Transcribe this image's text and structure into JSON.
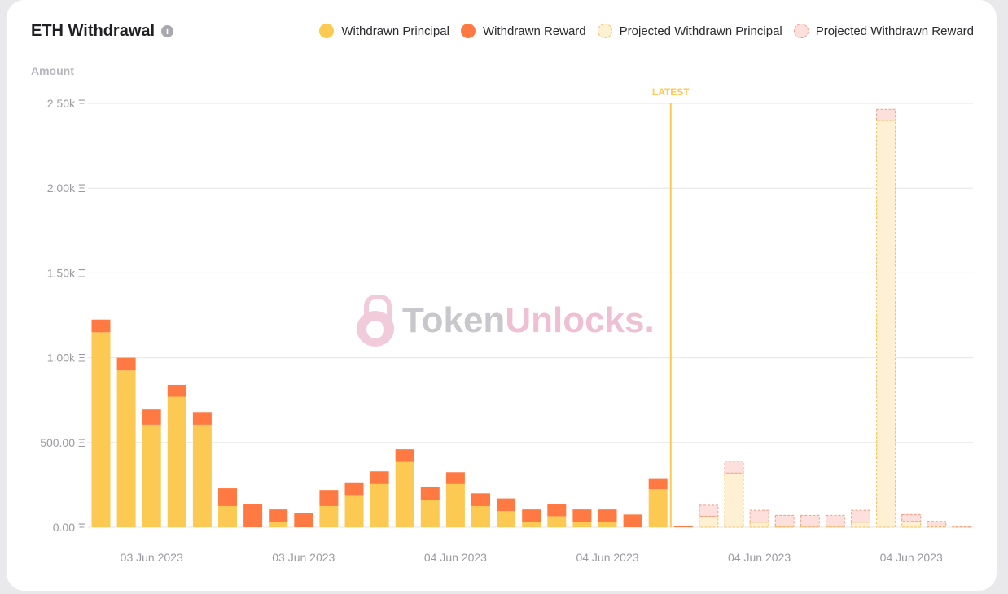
{
  "title": "ETH Withdrawal",
  "info_icon": "info-icon",
  "legend": [
    {
      "label": "Withdrawn Principal",
      "style": "principal"
    },
    {
      "label": "Withdrawn Reward",
      "style": "reward"
    },
    {
      "label": "Projected Withdrawn Principal",
      "style": "proj-principal"
    },
    {
      "label": "Projected Withdrawn Reward",
      "style": "proj-reward"
    }
  ],
  "watermark": {
    "part1": "Token",
    "part2": "Unlocks."
  },
  "colors": {
    "principal": "#fcc953",
    "reward": "#ff7a42",
    "proj_principal_fill": "#fdf0d3",
    "proj_principal_stroke": "#f5c15a",
    "proj_reward_fill": "#fde0db",
    "proj_reward_stroke": "#f29a86",
    "latest": "#fcc953",
    "grid": "#e6e6e9",
    "tick_text": "#9a9aa1"
  },
  "chart_data": {
    "type": "bar",
    "stacked": true,
    "ylabel": "Amount",
    "ylim": [
      0,
      2500
    ],
    "yticks": [
      0,
      500,
      1000,
      1500,
      2000,
      2500
    ],
    "ytick_labels": [
      "0.00 Ξ",
      "500.00 Ξ",
      "1.00k Ξ",
      "1.50k Ξ",
      "2.00k Ξ",
      "2.50k Ξ"
    ],
    "xtick_labels": [
      "03 Jun 2023",
      "03 Jun 2023",
      "04 Jun 2023",
      "04 Jun 2023",
      "04 Jun 2023",
      "04 Jun 2023"
    ],
    "xtick_bar_index": [
      2,
      8,
      14,
      20,
      26,
      32
    ],
    "latest_label": "LATEST",
    "latest_after_bar": 22,
    "grid": true,
    "legend_position": "top-right",
    "series": [
      {
        "name": "Withdrawn Principal",
        "values": [
          1150,
          925,
          605,
          770,
          605,
          125,
          0,
          30,
          0,
          125,
          190,
          255,
          385,
          160,
          255,
          125,
          95,
          30,
          65,
          30,
          30,
          0,
          225,
          0,
          null,
          null,
          null,
          null,
          null,
          null,
          null,
          null,
          null,
          null,
          null
        ]
      },
      {
        "name": "Withdrawn Reward",
        "values": [
          75,
          75,
          90,
          70,
          75,
          105,
          135,
          75,
          85,
          95,
          75,
          75,
          75,
          80,
          70,
          75,
          75,
          75,
          70,
          75,
          75,
          75,
          60,
          5,
          null,
          null,
          null,
          null,
          null,
          null,
          null,
          null,
          null,
          null,
          null
        ]
      },
      {
        "name": "Projected Withdrawn Principal",
        "values": [
          null,
          null,
          null,
          null,
          null,
          null,
          null,
          null,
          null,
          null,
          null,
          null,
          null,
          null,
          null,
          null,
          null,
          null,
          null,
          null,
          null,
          null,
          null,
          null,
          65,
          320,
          30,
          5,
          5,
          5,
          30,
          2400,
          35,
          5,
          2
        ]
      },
      {
        "name": "Projected Withdrawn Reward",
        "values": [
          null,
          null,
          null,
          null,
          null,
          null,
          null,
          null,
          null,
          null,
          null,
          null,
          null,
          null,
          null,
          null,
          null,
          null,
          null,
          null,
          null,
          null,
          null,
          null,
          65,
          70,
          70,
          65,
          65,
          65,
          70,
          65,
          40,
          30,
          5
        ]
      }
    ]
  }
}
